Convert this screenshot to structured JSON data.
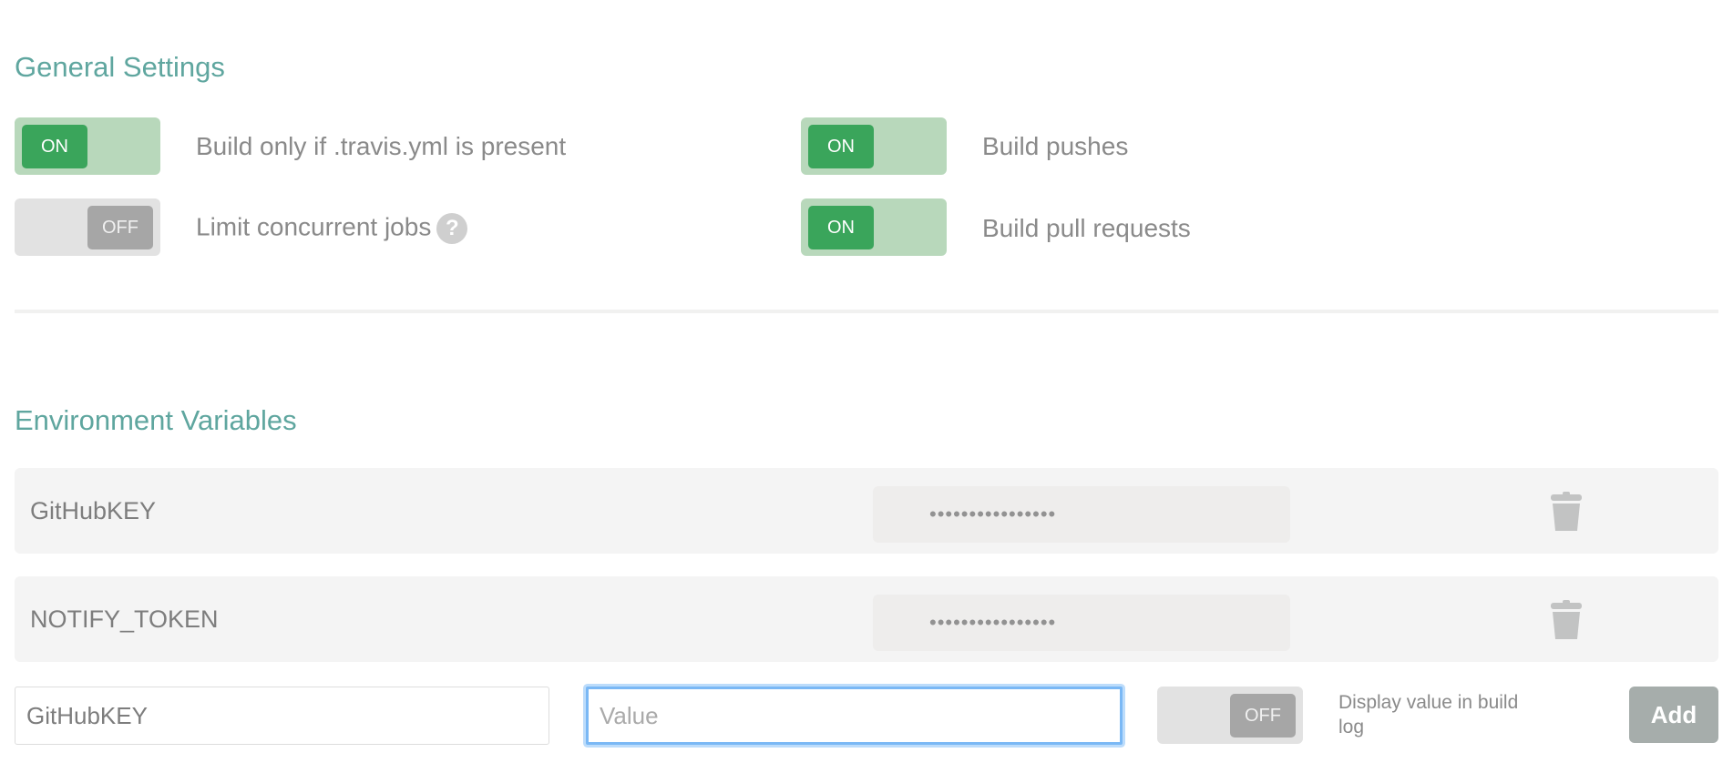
{
  "general": {
    "title": "General Settings",
    "settings": [
      {
        "label": "Build only if .travis.yml is present",
        "state": "ON"
      },
      {
        "label": "Build pushes",
        "state": "ON"
      },
      {
        "label": "Limit concurrent jobs",
        "state": "OFF",
        "help": "?"
      },
      {
        "label": "Build pull requests",
        "state": "ON"
      }
    ]
  },
  "env": {
    "title": "Environment Variables",
    "variables": [
      {
        "name": "GitHubKEY",
        "value": "••••••••••••••••"
      },
      {
        "name": "NOTIFY_TOKEN",
        "value": "••••••••••••••••"
      }
    ],
    "new": {
      "name_value": "GitHubKEY",
      "value_placeholder": "Value",
      "display_toggle": "OFF",
      "display_label": "Display value in build log",
      "add_label": "Add"
    }
  },
  "colors": {
    "accent": "#5fa69f",
    "on": "#3aa55b",
    "on_track": "#b8d8bb",
    "focus": "#7ab8f5"
  }
}
